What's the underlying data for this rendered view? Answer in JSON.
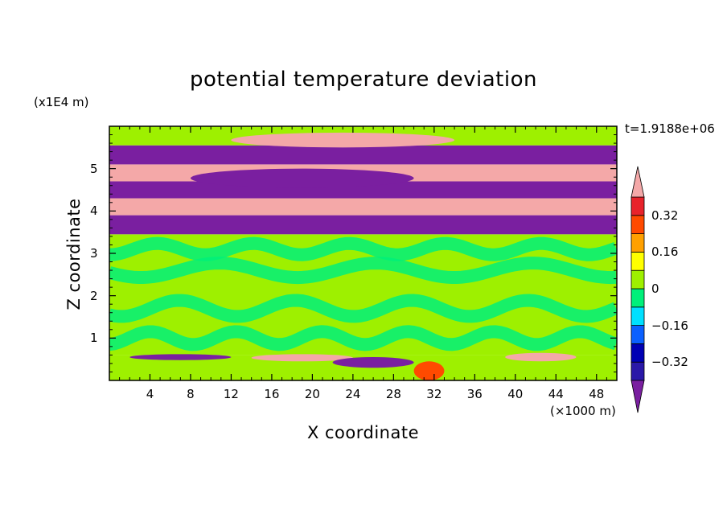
{
  "chart_data": {
    "type": "heatmap",
    "title": "potential temperature deviation",
    "xlabel": "X coordinate",
    "ylabel": "Z coordinate",
    "x_unit": "(×1000 m)",
    "y_unit": "(x1E4 m)",
    "time_label": "t=1.9188e+06",
    "xlim": [
      0,
      50
    ],
    "ylim": [
      0,
      6
    ],
    "x_ticks": [
      "4",
      "8",
      "12",
      "16",
      "20",
      "24",
      "28",
      "32",
      "36",
      "40",
      "44",
      "48"
    ],
    "x_tick_values": [
      4,
      8,
      12,
      16,
      20,
      24,
      28,
      32,
      36,
      40,
      44,
      48
    ],
    "y_ticks": [
      "1",
      "2",
      "3",
      "4",
      "5"
    ],
    "y_tick_values": [
      1,
      2,
      3,
      4,
      5
    ],
    "colorbar": {
      "labels": [
        "0.32",
        "0.16",
        "0",
        "−0.16",
        "−0.32"
      ],
      "label_values": [
        0.32,
        0.16,
        0,
        -0.16,
        -0.32
      ],
      "levels": [
        -0.4,
        -0.32,
        -0.24,
        -0.16,
        -0.08,
        0,
        0.08,
        0.16,
        0.24,
        0.32,
        0.4
      ],
      "colors": [
        "#7a1fa0",
        "#2a18a8",
        "#0000b4",
        "#0b60ff",
        "#00e0ff",
        "#00f07a",
        "#9ef000",
        "#ffff00",
        "#ffa000",
        "#ff4a00",
        "#e8232b",
        "#f4a8a8"
      ]
    },
    "bands": [
      {
        "z0": 0.0,
        "z1": 0.6,
        "value": 0.03
      },
      {
        "z0": 0.6,
        "z1": 3.45,
        "value": 0.06
      },
      {
        "z0": 3.45,
        "z1": 3.9,
        "value": -0.45
      },
      {
        "z0": 3.9,
        "z1": 4.3,
        "value": 0.45
      },
      {
        "z0": 4.3,
        "z1": 4.7,
        "value": -0.45
      },
      {
        "z0": 4.7,
        "z1": 5.1,
        "value": 0.45
      },
      {
        "z0": 5.1,
        "z1": 5.55,
        "value": -0.45
      },
      {
        "z0": 5.55,
        "z1": 6.0,
        "value": 0.02
      }
    ],
    "features": [
      {
        "x0": 2,
        "x1": 12,
        "z0": 0.48,
        "z1": 0.62,
        "value": -0.45
      },
      {
        "x0": 14,
        "x1": 24,
        "z0": 0.45,
        "z1": 0.62,
        "value": 0.45
      },
      {
        "x0": 22,
        "x1": 30,
        "z0": 0.3,
        "z1": 0.55,
        "value": -0.45
      },
      {
        "x0": 30,
        "x1": 33,
        "z0": 0.0,
        "z1": 0.45,
        "value": 0.3
      },
      {
        "x0": 39,
        "x1": 46,
        "z0": 0.45,
        "z1": 0.65,
        "value": 0.45
      },
      {
        "x0": 12,
        "x1": 34,
        "z0": 5.5,
        "z1": 5.85,
        "value": 0.45
      },
      {
        "x0": 8,
        "x1": 30,
        "z0": 4.55,
        "z1": 5.0,
        "value": -0.45
      }
    ]
  }
}
